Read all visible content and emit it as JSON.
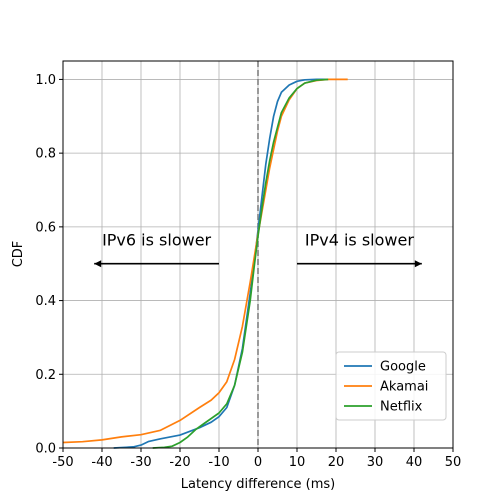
{
  "chart_data": {
    "type": "line",
    "title": "",
    "xlabel": "Latency difference (ms)",
    "ylabel": "CDF",
    "xlim": [
      -50,
      50
    ],
    "ylim": [
      0,
      1.05
    ],
    "xticks": [
      -50,
      -40,
      -30,
      -20,
      -10,
      0,
      10,
      20,
      30,
      40,
      50
    ],
    "yticks": [
      0.0,
      0.2,
      0.4,
      0.6,
      0.8,
      1.0
    ],
    "ytick_labels": [
      "0.0",
      "0.2",
      "0.4",
      "0.6",
      "0.8",
      "1.0"
    ],
    "grid": true,
    "legend_position": "lower-right",
    "reference_line": {
      "x": 0,
      "style": "dashed",
      "color": "#808080"
    },
    "annotations": [
      {
        "text": "IPv6 is slower",
        "arrow_from": -10,
        "arrow_to": -42,
        "y": 0.5
      },
      {
        "text": "IPv4 is slower",
        "arrow_from": 10,
        "arrow_to": 42,
        "y": 0.5
      }
    ],
    "series": [
      {
        "name": "Google",
        "color": "#1f77b4",
        "x": [
          -37,
          -32,
          -30,
          -28,
          -25,
          -20,
          -15,
          -12,
          -10,
          -8,
          -6,
          -4,
          -2,
          -1,
          0,
          1,
          2,
          3,
          4,
          5,
          6,
          8,
          10,
          12,
          15,
          18
        ],
        "y": [
          0.0,
          0.003,
          0.008,
          0.018,
          0.025,
          0.035,
          0.055,
          0.07,
          0.085,
          0.11,
          0.17,
          0.27,
          0.42,
          0.5,
          0.59,
          0.68,
          0.77,
          0.84,
          0.9,
          0.94,
          0.965,
          0.985,
          0.995,
          0.999,
          1.0,
          1.0
        ]
      },
      {
        "name": "Akamai",
        "color": "#ff7f0e",
        "x": [
          -50,
          -45,
          -40,
          -35,
          -30,
          -25,
          -20,
          -15,
          -12,
          -10,
          -8,
          -6,
          -4,
          -2,
          0,
          1,
          2,
          3,
          4,
          5,
          6,
          8,
          10,
          12,
          15,
          18,
          20,
          23
        ],
        "y": [
          0.015,
          0.017,
          0.022,
          0.03,
          0.036,
          0.048,
          0.075,
          0.11,
          0.13,
          0.15,
          0.18,
          0.24,
          0.33,
          0.45,
          0.58,
          0.64,
          0.7,
          0.76,
          0.81,
          0.86,
          0.9,
          0.945,
          0.975,
          0.99,
          0.997,
          1.0,
          1.0,
          1.0
        ]
      },
      {
        "name": "Netflix",
        "color": "#2ca02c",
        "x": [
          -27,
          -24,
          -22,
          -20,
          -18,
          -16,
          -14,
          -12,
          -10,
          -8,
          -6,
          -4,
          -2,
          -1,
          0,
          1,
          2,
          3,
          4,
          5,
          6,
          8,
          10,
          12,
          15,
          18
        ],
        "y": [
          0.0,
          0.002,
          0.005,
          0.015,
          0.03,
          0.05,
          0.065,
          0.08,
          0.095,
          0.12,
          0.17,
          0.26,
          0.4,
          0.49,
          0.575,
          0.65,
          0.72,
          0.78,
          0.83,
          0.87,
          0.91,
          0.95,
          0.975,
          0.99,
          0.998,
          1.0
        ]
      }
    ]
  }
}
